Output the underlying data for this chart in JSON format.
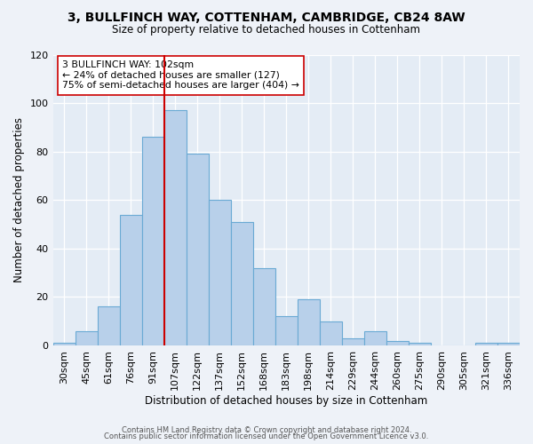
{
  "title": "3, BULLFINCH WAY, COTTENHAM, CAMBRIDGE, CB24 8AW",
  "subtitle": "Size of property relative to detached houses in Cottenham",
  "xlabel": "Distribution of detached houses by size in Cottenham",
  "ylabel": "Number of detached properties",
  "bin_labels": [
    "30sqm",
    "45sqm",
    "61sqm",
    "76sqm",
    "91sqm",
    "107sqm",
    "122sqm",
    "137sqm",
    "152sqm",
    "168sqm",
    "183sqm",
    "198sqm",
    "214sqm",
    "229sqm",
    "244sqm",
    "260sqm",
    "275sqm",
    "290sqm",
    "305sqm",
    "321sqm",
    "336sqm"
  ],
  "bar_heights": [
    1,
    6,
    16,
    54,
    86,
    97,
    79,
    60,
    51,
    32,
    12,
    19,
    10,
    3,
    6,
    2,
    1,
    0,
    0,
    1,
    1
  ],
  "bar_color": "#b8d0ea",
  "bar_edge_color": "#6aaad4",
  "vline_x_index": 5,
  "vline_color": "#cc0000",
  "annotation_text": "3 BULLFINCH WAY: 102sqm\n← 24% of detached houses are smaller (127)\n75% of semi-detached houses are larger (404) →",
  "annotation_box_color": "#ffffff",
  "annotation_box_edge": "#cc0000",
  "ylim": [
    0,
    120
  ],
  "yticks": [
    0,
    20,
    40,
    60,
    80,
    100,
    120
  ],
  "footer1": "Contains HM Land Registry data © Crown copyright and database right 2024.",
  "footer2": "Contains public sector information licensed under the Open Government Licence v3.0.",
  "bg_color": "#eef2f8",
  "plot_bg_color": "#e4ecf5"
}
